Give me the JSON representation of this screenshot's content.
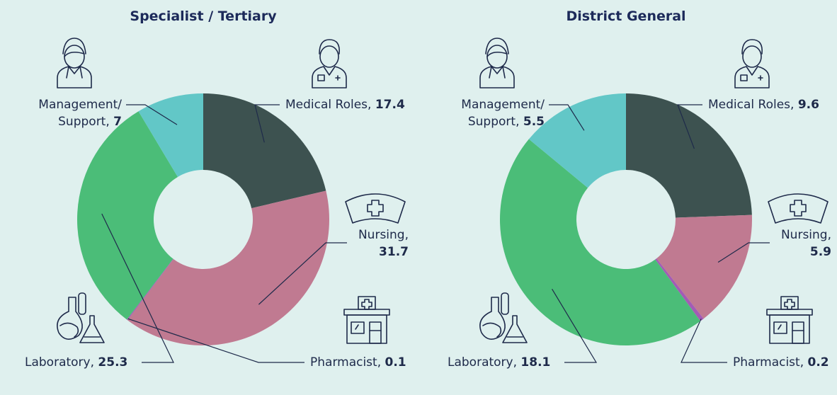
{
  "chart_data": [
    {
      "type": "donut",
      "title": "Specialist / Tertiary",
      "categories": [
        "Medical Roles,",
        "Nursing,",
        "Pharmacist,",
        "Laboratory,",
        "Management/ Support,"
      ],
      "values": [
        17.4,
        31.7,
        0.1,
        25.3,
        7
      ],
      "colors": [
        "#3d5250",
        "#c07a91",
        "#a45bb5",
        "#4bbd78",
        "#62c7c7"
      ]
    },
    {
      "type": "donut",
      "title": "District General",
      "categories": [
        "Medical Roles,",
        "Nursing,",
        "Pharmacist,",
        "Laboratory,",
        "Management/ Support,"
      ],
      "values": [
        9.6,
        5.9,
        0.2,
        18.1,
        5.5
      ],
      "colors": [
        "#3d5250",
        "#c07a91",
        "#a45bb5",
        "#4bbd78",
        "#62c7c7"
      ]
    }
  ]
}
